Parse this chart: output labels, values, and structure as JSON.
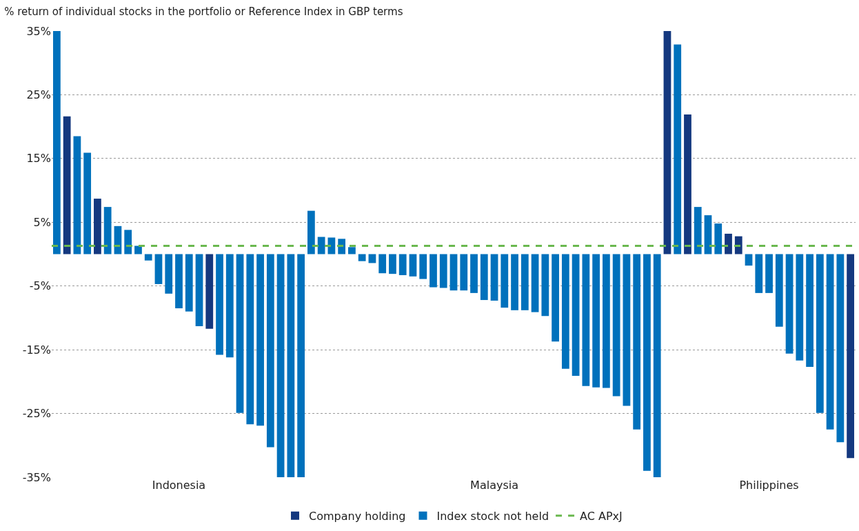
{
  "chart_data": {
    "type": "bar",
    "title": "% return of individual stocks in the portfolio or Reference Index in GBP terms",
    "categories": [
      null,
      null,
      null,
      null,
      null,
      null,
      null,
      null,
      null,
      null,
      null,
      null,
      "Indonesia",
      null,
      null,
      null,
      null,
      null,
      null,
      null,
      null,
      null,
      null,
      null,
      null,
      null,
      null,
      null,
      null,
      null,
      null,
      null,
      null,
      null,
      null,
      null,
      null,
      null,
      null,
      null,
      null,
      null,
      null,
      "Malaysia",
      null,
      null,
      null,
      null,
      null,
      null,
      null,
      null,
      null,
      null,
      null,
      null,
      null,
      null,
      null,
      null,
      null,
      null,
      null,
      null,
      null,
      null,
      null,
      null,
      null,
      null,
      "Philippines",
      null,
      null,
      null,
      null,
      null,
      null,
      null,
      null
    ],
    "series": [
      {
        "name": "Company holding",
        "color": "#14387f",
        "values": [
          null,
          21.6,
          null,
          null,
          8.7,
          null,
          null,
          null,
          null,
          null,
          null,
          null,
          null,
          null,
          null,
          -11.7,
          null,
          null,
          null,
          null,
          null,
          null,
          null,
          null,
          null,
          null,
          null,
          null,
          null,
          null,
          null,
          null,
          null,
          null,
          null,
          null,
          null,
          null,
          null,
          null,
          null,
          null,
          null,
          null,
          null,
          null,
          null,
          null,
          null,
          null,
          null,
          null,
          null,
          null,
          null,
          null,
          null,
          null,
          null,
          null,
          35,
          null,
          21.9,
          null,
          null,
          null,
          3.2,
          2.8,
          null,
          null,
          null,
          null,
          null,
          null,
          null,
          null,
          null,
          null,
          -32
        ]
      },
      {
        "name": "Index stock not held",
        "color": "#0071bc",
        "values": [
          35,
          null,
          18.5,
          15.9,
          null,
          7.4,
          4.4,
          3.8,
          1.3,
          -1.0,
          -4.7,
          -6.2,
          -8.5,
          -9.0,
          -11.3,
          null,
          -15.8,
          -16.2,
          -24.9,
          -26.7,
          -26.9,
          -30.3,
          -35,
          -35,
          -35,
          6.8,
          2.7,
          2.6,
          2.4,
          1.1,
          -1.1,
          -1.4,
          -3.0,
          -3.1,
          -3.3,
          -3.5,
          -3.9,
          -5.2,
          -5.3,
          -5.7,
          -5.7,
          -6.1,
          -7.2,
          -7.3,
          -8.4,
          -8.8,
          -8.8,
          -9.1,
          -9.7,
          -13.7,
          -18.0,
          -19.1,
          -20.7,
          -20.9,
          -21.0,
          -22.3,
          -23.8,
          -27.5,
          -34.0,
          -35,
          null,
          32.9,
          null,
          7.4,
          6.1,
          4.8,
          null,
          null,
          -1.8,
          -6.1,
          -6.1,
          -11.4,
          -15.6,
          -16.7,
          -17.7,
          -24.9,
          -27.5,
          -29.5,
          null
        ]
      }
    ],
    "ref_lines": [
      {
        "axis": "y",
        "value": 1.3,
        "label": "AC APxJ",
        "color": "#6ab84f",
        "line_style": "dashed"
      }
    ],
    "ylim": [
      -35,
      35
    ],
    "yticks": [
      {
        "value": -35,
        "label": "-35%"
      },
      {
        "value": -25,
        "label": "-25%"
      },
      {
        "value": -15,
        "label": "-15%"
      },
      {
        "value": -5,
        "label": "-5%"
      },
      {
        "value": 5,
        "label": "5%"
      },
      {
        "value": 15,
        "label": "15%"
      },
      {
        "value": 25,
        "label": "25%"
      },
      {
        "value": 35,
        "label": "35%"
      }
    ],
    "grid": "y",
    "legend": "bottom"
  }
}
